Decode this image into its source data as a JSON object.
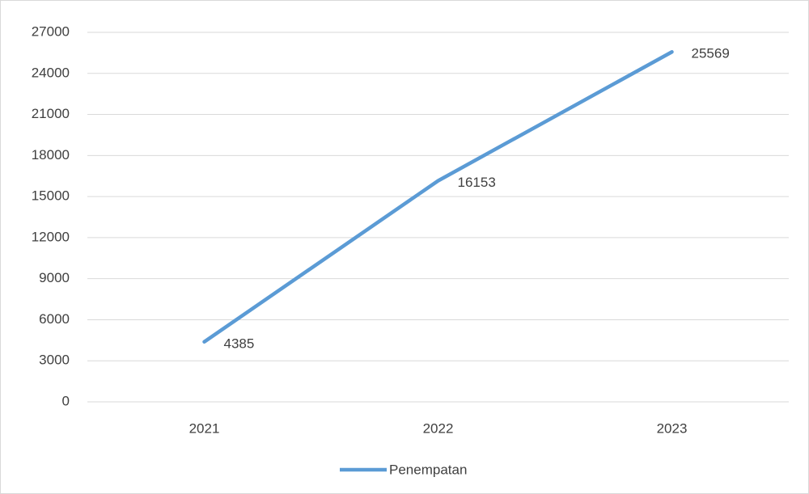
{
  "chart_data": {
    "type": "line",
    "categories": [
      "2021",
      "2022",
      "2023"
    ],
    "series": [
      {
        "name": "Penempatan",
        "color": "#5b9bd5",
        "values": [
          4385,
          16153,
          25569
        ]
      }
    ],
    "ylim": [
      0,
      27000
    ],
    "yticks": [
      0,
      3000,
      6000,
      9000,
      12000,
      15000,
      18000,
      21000,
      24000,
      27000
    ],
    "grid": true,
    "legend": "bottom",
    "data_labels": true
  }
}
